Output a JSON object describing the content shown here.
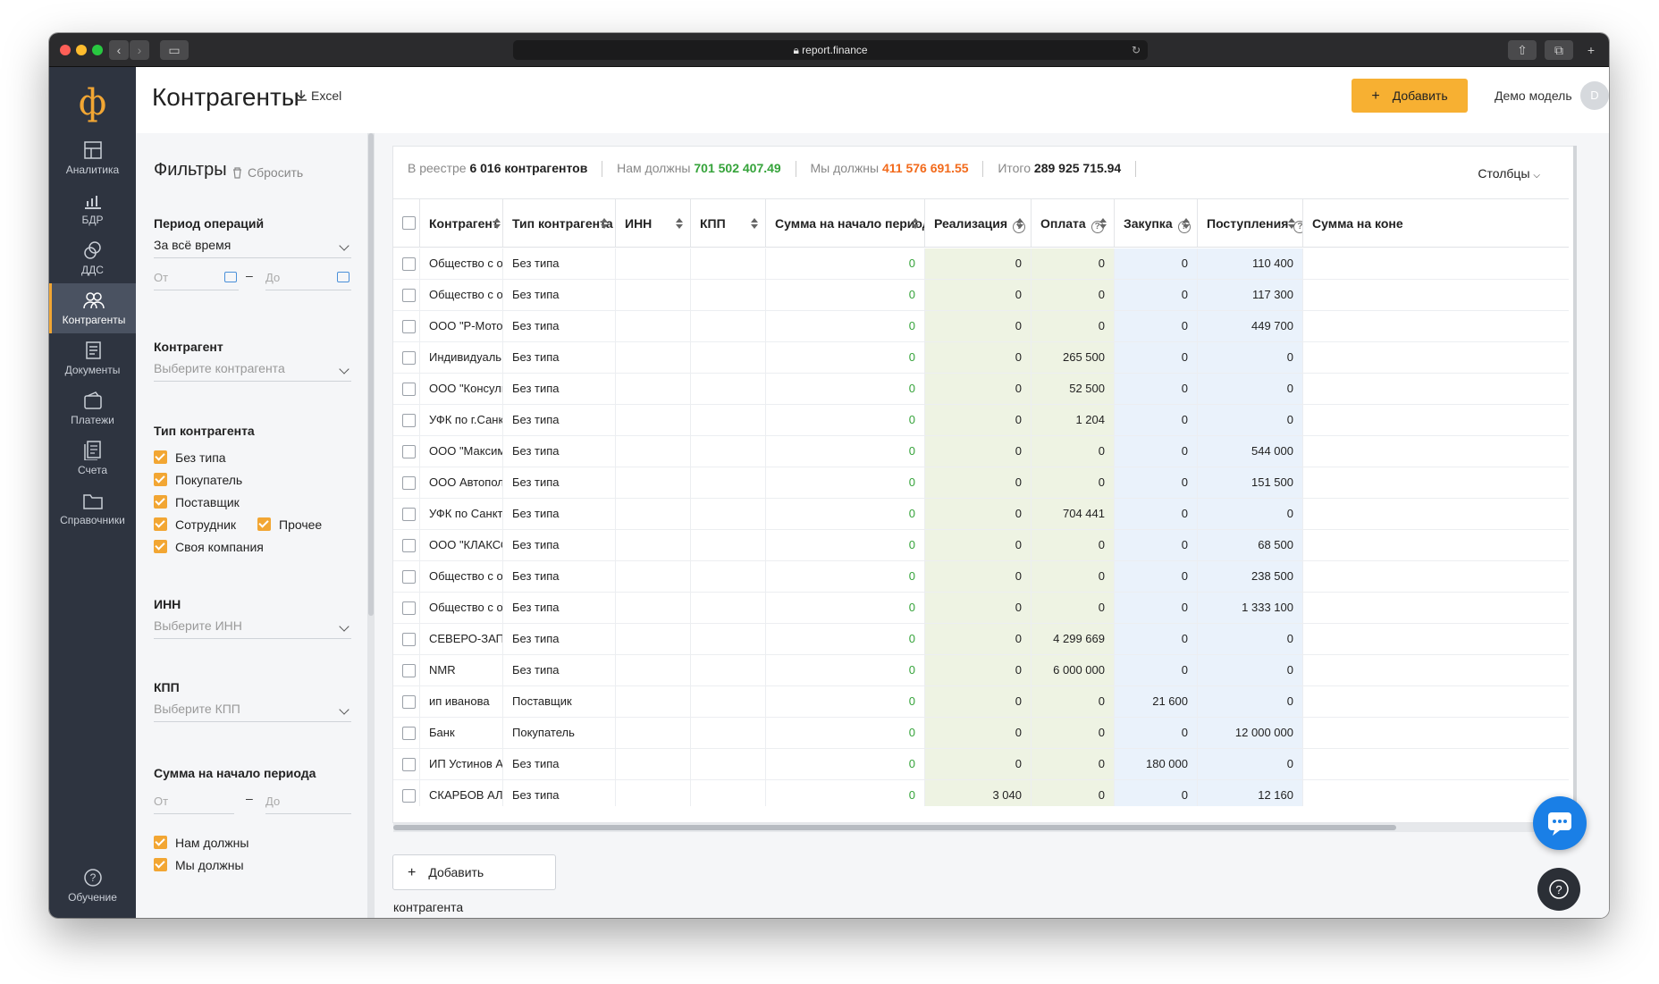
{
  "browser": {
    "url": "report.finance"
  },
  "sidebar": {
    "logo": "ф",
    "items": [
      {
        "label": "Аналитика",
        "icon": "analytics-icon"
      },
      {
        "label": "БДР",
        "icon": "bar-chart-icon"
      },
      {
        "label": "ДДС",
        "icon": "coins-icon"
      },
      {
        "label": "Контрагенты",
        "icon": "contractors-icon",
        "active": true
      },
      {
        "label": "Документы",
        "icon": "documents-icon"
      },
      {
        "label": "Платежи",
        "icon": "wallet-icon"
      },
      {
        "label": "Счета",
        "icon": "invoices-icon"
      },
      {
        "label": "Справочники",
        "icon": "folder-icon"
      }
    ],
    "bottom": {
      "label": "Обучение",
      "icon": "help-circle-icon"
    }
  },
  "header": {
    "title": "Контрагенты",
    "excel_label": "Excel",
    "add_label": "Добавить",
    "user_name": "Демо модель",
    "avatar_letter": "D"
  },
  "filters": {
    "title": "Фильтры",
    "reset_label": "Сбросить",
    "period": {
      "label": "Период операций",
      "value": "За всё время",
      "from_placeholder": "От",
      "to_placeholder": "До"
    },
    "contractor": {
      "label": "Контрагент",
      "placeholder": "Выберите контрагента"
    },
    "type": {
      "label": "Тип контрагента",
      "options": [
        "Без типа",
        "Покупатель",
        "Поставщик",
        "Сотрудник",
        "Прочее",
        "Своя компания"
      ]
    },
    "inn": {
      "label": "ИНН",
      "placeholder": "Выберите ИНН"
    },
    "kpp": {
      "label": "КПП",
      "placeholder": "Выберите КПП"
    },
    "start_sum": {
      "label": "Сумма на начало периода",
      "from_placeholder": "От",
      "to_placeholder": "До",
      "options": [
        "Нам должны",
        "Мы должны"
      ]
    }
  },
  "stats": {
    "registry_label": "В реестре",
    "registry_value": "6 016 контрагентов",
    "owed_to_us_label": "Нам должны",
    "owed_to_us_value": "701 502 407.49",
    "we_owe_label": "Мы должны",
    "we_owe_value": "411 576 691.55",
    "total_label": "Итого",
    "total_value": "289 925 715.94",
    "columns_label": "Столбцы"
  },
  "colors": {
    "accent": "#f7b032",
    "green_value": "#35a33a",
    "orange_value": "#f26a1b"
  },
  "table": {
    "headers": [
      "Контрагент",
      "Тип контрагента",
      "ИНН",
      "КПП",
      "Сумма на начало периода",
      "Реализация",
      "Оплата",
      "Закупка",
      "Поступления",
      "Сумма на коне"
    ],
    "rows": [
      [
        "Общество с огра",
        "Без типа",
        "",
        "",
        "0",
        "0",
        "0",
        "0",
        "110 400"
      ],
      [
        "Общество с огра",
        "Без типа",
        "",
        "",
        "0",
        "0",
        "0",
        "0",
        "117 300"
      ],
      [
        "ООО \"Р-Моторс .",
        "Без типа",
        "",
        "",
        "0",
        "0",
        "0",
        "0",
        "449 700"
      ],
      [
        "Индивидуальны",
        "Без типа",
        "",
        "",
        "0",
        "0",
        "265 500",
        "0",
        "0"
      ],
      [
        "ООО \"Консульта",
        "Без типа",
        "",
        "",
        "0",
        "0",
        "52 500",
        "0",
        "0"
      ],
      [
        "УФК по г.Санкт-",
        "Без типа",
        "",
        "",
        "0",
        "0",
        "1 204",
        "0",
        "0"
      ],
      [
        "ООО \"Максимум",
        "Без типа",
        "",
        "",
        "0",
        "0",
        "0",
        "0",
        "544 000"
      ],
      [
        "ООО Автополе М",
        "Без типа",
        "",
        "",
        "0",
        "0",
        "0",
        "0",
        "151 500"
      ],
      [
        "УФК по Санкт-П",
        "Без типа",
        "",
        "",
        "0",
        "0",
        "704 441",
        "0",
        "0"
      ],
      [
        "ООО \"КЛАКСОН\"",
        "Без типа",
        "",
        "",
        "0",
        "0",
        "0",
        "0",
        "68 500"
      ],
      [
        "Общество с огра",
        "Без типа",
        "",
        "",
        "0",
        "0",
        "0",
        "0",
        "238 500"
      ],
      [
        "Общество с огра",
        "Без типа",
        "",
        "",
        "0",
        "0",
        "0",
        "0",
        "1 333 100"
      ],
      [
        "СЕВЕРО-ЗАПАДІ",
        "Без типа",
        "",
        "",
        "0",
        "0",
        "4 299 669",
        "0",
        "0"
      ],
      [
        "NMR",
        "Без типа",
        "",
        "",
        "0",
        "0",
        "6 000 000",
        "0",
        "0"
      ],
      [
        "ип иванова",
        "Поставщик",
        "",
        "",
        "0",
        "0",
        "0",
        "21 600",
        "0"
      ],
      [
        "Банк",
        "Покупатель",
        "",
        "",
        "0",
        "0",
        "0",
        "0",
        "12 000 000"
      ],
      [
        "ИП Устинов Анд",
        "Без типа",
        "",
        "",
        "0",
        "0",
        "0",
        "180 000",
        "0"
      ],
      [
        "СКАРБОВ АЛЕКС",
        "Без типа",
        "",
        "",
        "0",
        "3 040",
        "0",
        "0",
        "12 160"
      ]
    ]
  },
  "add_contractor_label": "Добавить контрагента"
}
